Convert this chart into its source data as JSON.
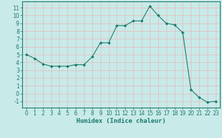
{
  "x": [
    0,
    1,
    2,
    3,
    4,
    5,
    6,
    7,
    8,
    9,
    10,
    11,
    12,
    13,
    14,
    15,
    16,
    17,
    18,
    19,
    20,
    21,
    22,
    23
  ],
  "y": [
    5,
    4.5,
    3.8,
    3.5,
    3.5,
    3.5,
    3.7,
    3.7,
    4.7,
    6.5,
    6.5,
    8.7,
    8.7,
    9.3,
    9.3,
    11.2,
    10.0,
    9.0,
    8.8,
    7.8,
    0.5,
    -0.5,
    -1.1,
    -1.0
  ],
  "line_color": "#1a7a6e",
  "marker": "D",
  "marker_size": 2.0,
  "bg_color": "#c8eae8",
  "grid_color": "#e8b8b8",
  "xlabel": "Humidex (Indice chaleur)",
  "ylim": [
    -1.8,
    11.8
  ],
  "xlim": [
    -0.5,
    23.5
  ],
  "yticks": [
    -1,
    0,
    1,
    2,
    3,
    4,
    5,
    6,
    7,
    8,
    9,
    10,
    11
  ],
  "xticks": [
    0,
    1,
    2,
    3,
    4,
    5,
    6,
    7,
    8,
    9,
    10,
    11,
    12,
    13,
    14,
    15,
    16,
    17,
    18,
    19,
    20,
    21,
    22,
    23
  ],
  "tick_color": "#1a7a6e",
  "label_fontsize": 5.5,
  "xlabel_fontsize": 6.5,
  "axis_color": "#1a7a6e",
  "linewidth": 0.8
}
